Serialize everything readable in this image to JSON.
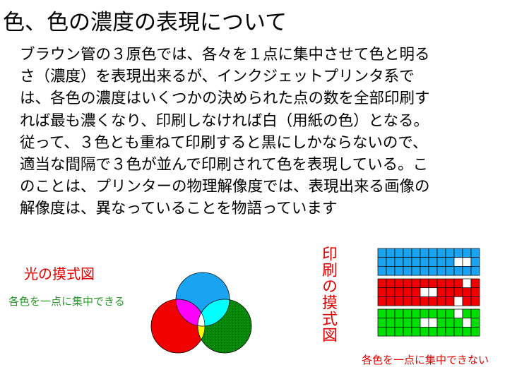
{
  "title": "色、色の濃度の表現について",
  "body": {
    "lines": [
      "ブラウン管の３原色では、各々を１点に集中させて色と明る",
      "さ（濃度）を表現出来るが、インクジェットプリンタ系で",
      "は、各色の濃度はいくつかの決められた点の数を全部印刷す",
      "れば最も濃くなり、印刷しなければ白（用紙の色）となる。",
      "従って、３色とも重ねて印刷すると黒にしかならないので、",
      "適当な間隔で３色が並んで印刷されて色を表現している。こ",
      "のことは、プリンターの物理解像度では、表現出来る画像の",
      "解像度は、異なっていることを物語っています"
    ]
  },
  "light_diagram": {
    "title": "光の摸式図",
    "note": "各色を一点に集中できる"
  },
  "print_diagram": {
    "title": "印刷の摸式図",
    "note": "各色を一点に集中できない"
  }
}
